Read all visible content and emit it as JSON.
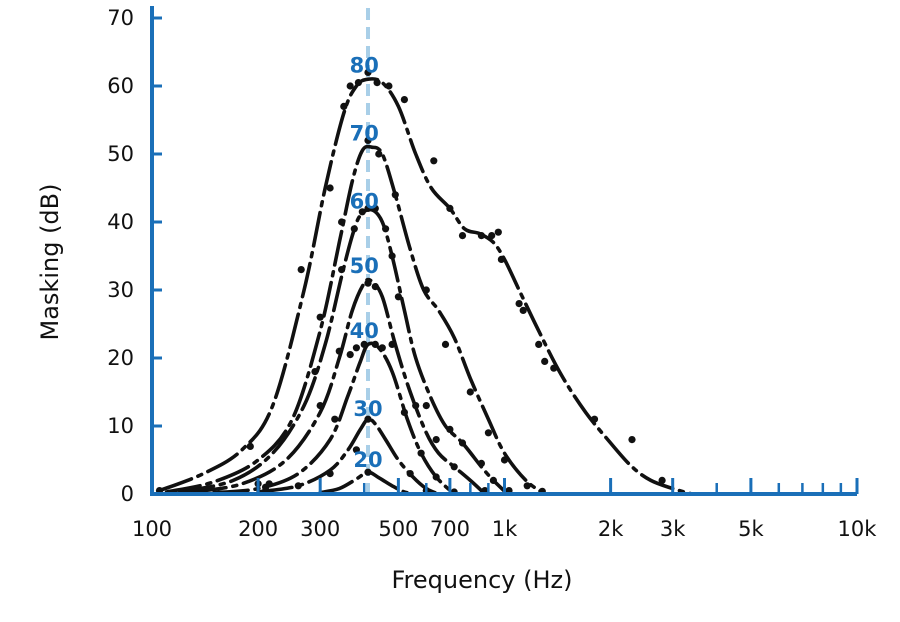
{
  "chart_data": {
    "type": "line",
    "xlabel": "Frequency (Hz)",
    "ylabel": "Masking (dB)",
    "x_scale": "log",
    "xlim": [
      100,
      10000
    ],
    "ylim": [
      0,
      70
    ],
    "x_ticks": [
      {
        "value": 100,
        "label": "100"
      },
      {
        "value": 200,
        "label": "200"
      },
      {
        "value": 300,
        "label": "300"
      },
      {
        "value": 500,
        "label": "500"
      },
      {
        "value": 700,
        "label": "700"
      },
      {
        "value": 1000,
        "label": "1k"
      },
      {
        "value": 2000,
        "label": "2k"
      },
      {
        "value": 3000,
        "label": "3k"
      },
      {
        "value": 5000,
        "label": "5k"
      },
      {
        "value": 10000,
        "label": "10k"
      }
    ],
    "x_minor_ticks": [
      400,
      600,
      800,
      900,
      4000,
      6000,
      7000,
      8000,
      9000
    ],
    "y_ticks": [
      0,
      10,
      20,
      30,
      40,
      50,
      60,
      70
    ],
    "reference_frequency": 410,
    "colors": {
      "axis": "#1a6fb8",
      "reference": "#a9cfe8",
      "curve": "#111111",
      "label": "#1a6fb8"
    },
    "series": [
      {
        "label": "20",
        "label_at": [
          410,
          5
        ],
        "curve": [
          [
            300,
            0.2
          ],
          [
            340,
            0.8
          ],
          [
            380,
            2.2
          ],
          [
            410,
            3.2
          ],
          [
            440,
            2.4
          ],
          [
            480,
            1.2
          ],
          [
            520,
            0.3
          ],
          [
            560,
            0
          ]
        ],
        "points": [
          [
            410,
            3.2
          ]
        ]
      },
      {
        "label": "30",
        "label_at": [
          410,
          12.5
        ],
        "curve": [
          [
            200,
            0.3
          ],
          [
            260,
            1.2
          ],
          [
            320,
            3.5
          ],
          [
            360,
            6.5
          ],
          [
            390,
            9.5
          ],
          [
            410,
            11
          ],
          [
            430,
            10.3
          ],
          [
            460,
            8
          ],
          [
            500,
            5
          ],
          [
            550,
            2.5
          ],
          [
            600,
            0.8
          ],
          [
            650,
            0
          ]
        ],
        "points": [
          [
            410,
            11
          ],
          [
            380,
            6.5
          ],
          [
            320,
            3
          ],
          [
            260,
            1.2
          ],
          [
            540,
            3
          ],
          [
            600,
            0.5
          ]
        ]
      },
      {
        "label": "40",
        "label_at": [
          400,
          24
        ],
        "curve": [
          [
            150,
            0.2
          ],
          [
            200,
            0.8
          ],
          [
            260,
            3
          ],
          [
            320,
            8
          ],
          [
            360,
            14.5
          ],
          [
            390,
            19.5
          ],
          [
            410,
            22
          ],
          [
            440,
            21.5
          ],
          [
            480,
            18
          ],
          [
            530,
            11
          ],
          [
            580,
            6
          ],
          [
            640,
            2.5
          ],
          [
            720,
            0
          ]
        ],
        "points": [
          [
            210,
            0.5
          ],
          [
            330,
            11
          ],
          [
            365,
            20.5
          ],
          [
            380,
            21.5
          ],
          [
            400,
            22
          ],
          [
            430,
            22
          ],
          [
            450,
            21.5
          ],
          [
            520,
            12
          ],
          [
            580,
            6
          ],
          [
            640,
            2.5
          ],
          [
            720,
            0.3
          ]
        ]
      },
      {
        "label": "50",
        "label_at": [
          400,
          33.5
        ],
        "curve": [
          [
            130,
            0.3
          ],
          [
            180,
            1.5
          ],
          [
            240,
            5
          ],
          [
            300,
            12
          ],
          [
            340,
            20
          ],
          [
            370,
            27
          ],
          [
            400,
            31
          ],
          [
            420,
            31.3
          ],
          [
            450,
            29
          ],
          [
            490,
            22
          ],
          [
            540,
            15
          ],
          [
            600,
            9
          ],
          [
            650,
            6
          ],
          [
            720,
            4
          ],
          [
            800,
            2
          ],
          [
            880,
            0
          ]
        ],
        "points": [
          [
            210,
            1
          ],
          [
            300,
            13
          ],
          [
            340,
            21
          ],
          [
            410,
            31
          ],
          [
            430,
            30.5
          ],
          [
            480,
            22
          ],
          [
            560,
            13
          ],
          [
            640,
            8
          ],
          [
            720,
            4
          ],
          [
            880,
            0.5
          ]
        ]
      },
      {
        "label": "60",
        "label_at": [
          400,
          43
        ]
      },
      {
        "label": "60-curve-a",
        "curve": [
          [
            120,
            0.3
          ],
          [
            170,
            2
          ],
          [
            220,
            6
          ],
          [
            270,
            13
          ],
          [
            310,
            22
          ],
          [
            345,
            32
          ],
          [
            370,
            38
          ],
          [
            390,
            41
          ],
          [
            420,
            41.8
          ],
          [
            450,
            40
          ],
          [
            480,
            35
          ],
          [
            520,
            27
          ],
          [
            560,
            20
          ],
          [
            620,
            14
          ],
          [
            680,
            10
          ],
          [
            760,
            7.5
          ],
          [
            860,
            4
          ],
          [
            930,
            2
          ],
          [
            1020,
            0
          ]
        ],
        "points": [
          [
            215,
            1.5
          ],
          [
            290,
            18
          ],
          [
            345,
            33
          ],
          [
            375,
            39
          ],
          [
            395,
            41.5
          ],
          [
            410,
            42
          ],
          [
            430,
            42
          ],
          [
            460,
            39
          ],
          [
            480,
            35
          ],
          [
            500,
            29
          ],
          [
            600,
            13
          ],
          [
            700,
            9.5
          ],
          [
            760,
            7.5
          ],
          [
            860,
            4.5
          ],
          [
            930,
            2
          ],
          [
            1030,
            0.5
          ]
        ]
      },
      {
        "label": "70",
        "label_at": [
          400,
          53
        ]
      },
      {
        "label": "70-curve",
        "curve": [
          [
            110,
            0.3
          ],
          [
            150,
            1.8
          ],
          [
            200,
            5
          ],
          [
            250,
            11
          ],
          [
            300,
            24
          ],
          [
            340,
            37
          ],
          [
            370,
            46
          ],
          [
            395,
            50.5
          ],
          [
            420,
            51
          ],
          [
            450,
            50
          ],
          [
            490,
            44
          ],
          [
            540,
            36
          ],
          [
            590,
            30
          ],
          [
            650,
            27
          ],
          [
            720,
            23
          ],
          [
            800,
            17
          ],
          [
            900,
            11
          ],
          [
            1000,
            6
          ],
          [
            1150,
            2
          ],
          [
            1300,
            0
          ]
        ],
        "points": [
          [
            200,
            1.5
          ],
          [
            300,
            26
          ],
          [
            345,
            40
          ],
          [
            410,
            52
          ],
          [
            440,
            50
          ],
          [
            490,
            44
          ],
          [
            600,
            30
          ],
          [
            680,
            22
          ],
          [
            800,
            15
          ],
          [
            900,
            9
          ],
          [
            1000,
            5
          ],
          [
            1160,
            1.2
          ],
          [
            1280,
            0.4
          ]
        ]
      },
      {
        "label": "80",
        "label_at": [
          400,
          63
        ]
      },
      {
        "label": "80-curve",
        "curve": [
          [
            105,
            0.5
          ],
          [
            140,
            3
          ],
          [
            180,
            6.5
          ],
          [
            220,
            13
          ],
          [
            270,
            30
          ],
          [
            310,
            45
          ],
          [
            350,
            56
          ],
          [
            380,
            60
          ],
          [
            410,
            61
          ],
          [
            450,
            60.5
          ],
          [
            500,
            57
          ],
          [
            560,
            50
          ],
          [
            620,
            45
          ],
          [
            700,
            42
          ],
          [
            770,
            39
          ],
          [
            850,
            38.3
          ],
          [
            930,
            37
          ],
          [
            1000,
            34.5
          ],
          [
            1100,
            30
          ],
          [
            1250,
            24
          ],
          [
            1450,
            17.5
          ],
          [
            1700,
            12
          ],
          [
            2000,
            7.5
          ],
          [
            2300,
            4
          ],
          [
            2600,
            2
          ],
          [
            3000,
            0.8
          ],
          [
            3400,
            0
          ]
        ],
        "points": [
          [
            105,
            0.5
          ],
          [
            190,
            7
          ],
          [
            265,
            33
          ],
          [
            320,
            45
          ],
          [
            350,
            57
          ],
          [
            365,
            60
          ],
          [
            385,
            60.5
          ],
          [
            410,
            62
          ],
          [
            435,
            60.5
          ],
          [
            470,
            60
          ],
          [
            520,
            58
          ],
          [
            630,
            49
          ],
          [
            700,
            42
          ],
          [
            760,
            38
          ],
          [
            860,
            38
          ],
          [
            920,
            38
          ],
          [
            960,
            38.5
          ],
          [
            980,
            34.5
          ],
          [
            1100,
            28
          ],
          [
            1130,
            27
          ],
          [
            1250,
            22
          ],
          [
            1300,
            19.5
          ],
          [
            1380,
            18.5
          ],
          [
            1800,
            11
          ],
          [
            2300,
            8
          ],
          [
            2800,
            2
          ]
        ]
      }
    ]
  }
}
